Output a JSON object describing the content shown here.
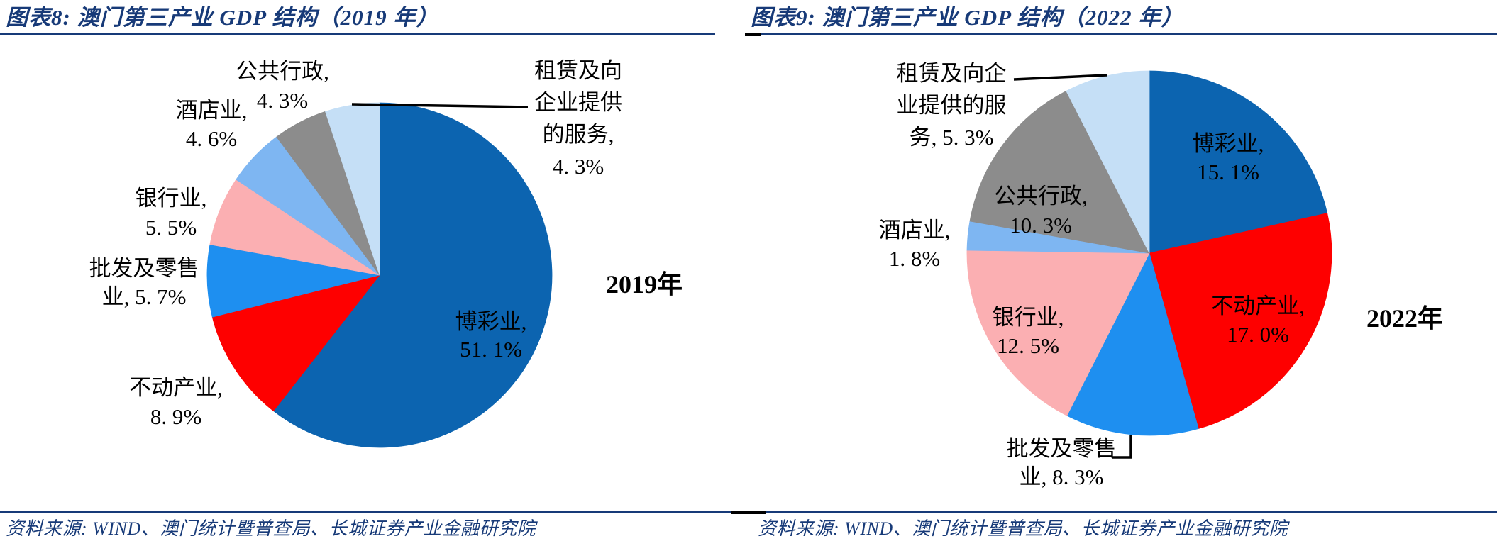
{
  "page": {
    "background": "#FFFFFF",
    "accent_navy": "#173A78",
    "leader_line_color": "#000000",
    "label_text_color": "#000000"
  },
  "chart_data": [
    {
      "type": "pie",
      "title": "图表8:  澳门第三产业 GDP 结构（2019 年）",
      "year_label": "2019年",
      "source": "资料来源: WIND、澳门统计暨普查局、长城证券产业金融研究院",
      "legend_position": "none",
      "slices": [
        {
          "label": "博彩业",
          "value": 51.1,
          "color": "#0C64B0",
          "label_lines": [
            "博彩业,",
            "51. 1%"
          ]
        },
        {
          "label": "不动产业",
          "value": 8.9,
          "color": "#FE0000",
          "label_lines": [
            "不动产业,",
            "8. 9%"
          ]
        },
        {
          "label": "批发及零售业",
          "value": 5.7,
          "color": "#1E8FF0",
          "label_lines": [
            "批发及零售",
            "业, 5. 7%"
          ]
        },
        {
          "label": "银行业",
          "value": 5.5,
          "color": "#FBAFB2",
          "label_lines": [
            "银行业,",
            "5. 5%"
          ]
        },
        {
          "label": "酒店业",
          "value": 4.6,
          "color": "#7EB6F2",
          "label_lines": [
            "酒店业,",
            "4. 6%"
          ]
        },
        {
          "label": "公共行政",
          "value": 4.3,
          "color": "#8C8C8C",
          "label_lines": [
            "公共行政,",
            "4. 3%"
          ]
        },
        {
          "label": "租赁及向企业提供的服务",
          "value": 4.3,
          "color": "#C5DFF6",
          "label_lines": [
            "租赁及向",
            "企业提供",
            "的服务,",
            "4. 3%"
          ]
        }
      ]
    },
    {
      "type": "pie",
      "title": "图表9:  澳门第三产业 GDP 结构（2022 年）",
      "year_label": "2022年",
      "source": "资料来源: WIND、澳门统计暨普查局、长城证券产业金融研究院",
      "legend_position": "none",
      "slices": [
        {
          "label": "博彩业",
          "value": 15.1,
          "color": "#0C64B0",
          "label_lines": [
            "博彩业,",
            "15. 1%"
          ]
        },
        {
          "label": "不动产业",
          "value": 17.0,
          "color": "#FE0000",
          "label_lines": [
            "不动产业,",
            "17. 0%"
          ]
        },
        {
          "label": "批发及零售业",
          "value": 8.3,
          "color": "#1E8FF0",
          "label_lines": [
            "批发及零售",
            "业, 8. 3%"
          ]
        },
        {
          "label": "银行业",
          "value": 12.5,
          "color": "#FBAFB2",
          "label_lines": [
            "银行业,",
            "12. 5%"
          ]
        },
        {
          "label": "酒店业",
          "value": 1.8,
          "color": "#7EB6F2",
          "label_lines": [
            "酒店业,",
            "1. 8%"
          ]
        },
        {
          "label": "公共行政",
          "value": 10.3,
          "color": "#8C8C8C",
          "label_lines": [
            "公共行政,",
            "10. 3%"
          ]
        },
        {
          "label": "租赁及向企业提供的服务",
          "value": 5.3,
          "color": "#C5DFF6",
          "label_lines": [
            "租赁及向企",
            "业提供的服",
            "务, 5. 3%"
          ]
        }
      ]
    }
  ]
}
